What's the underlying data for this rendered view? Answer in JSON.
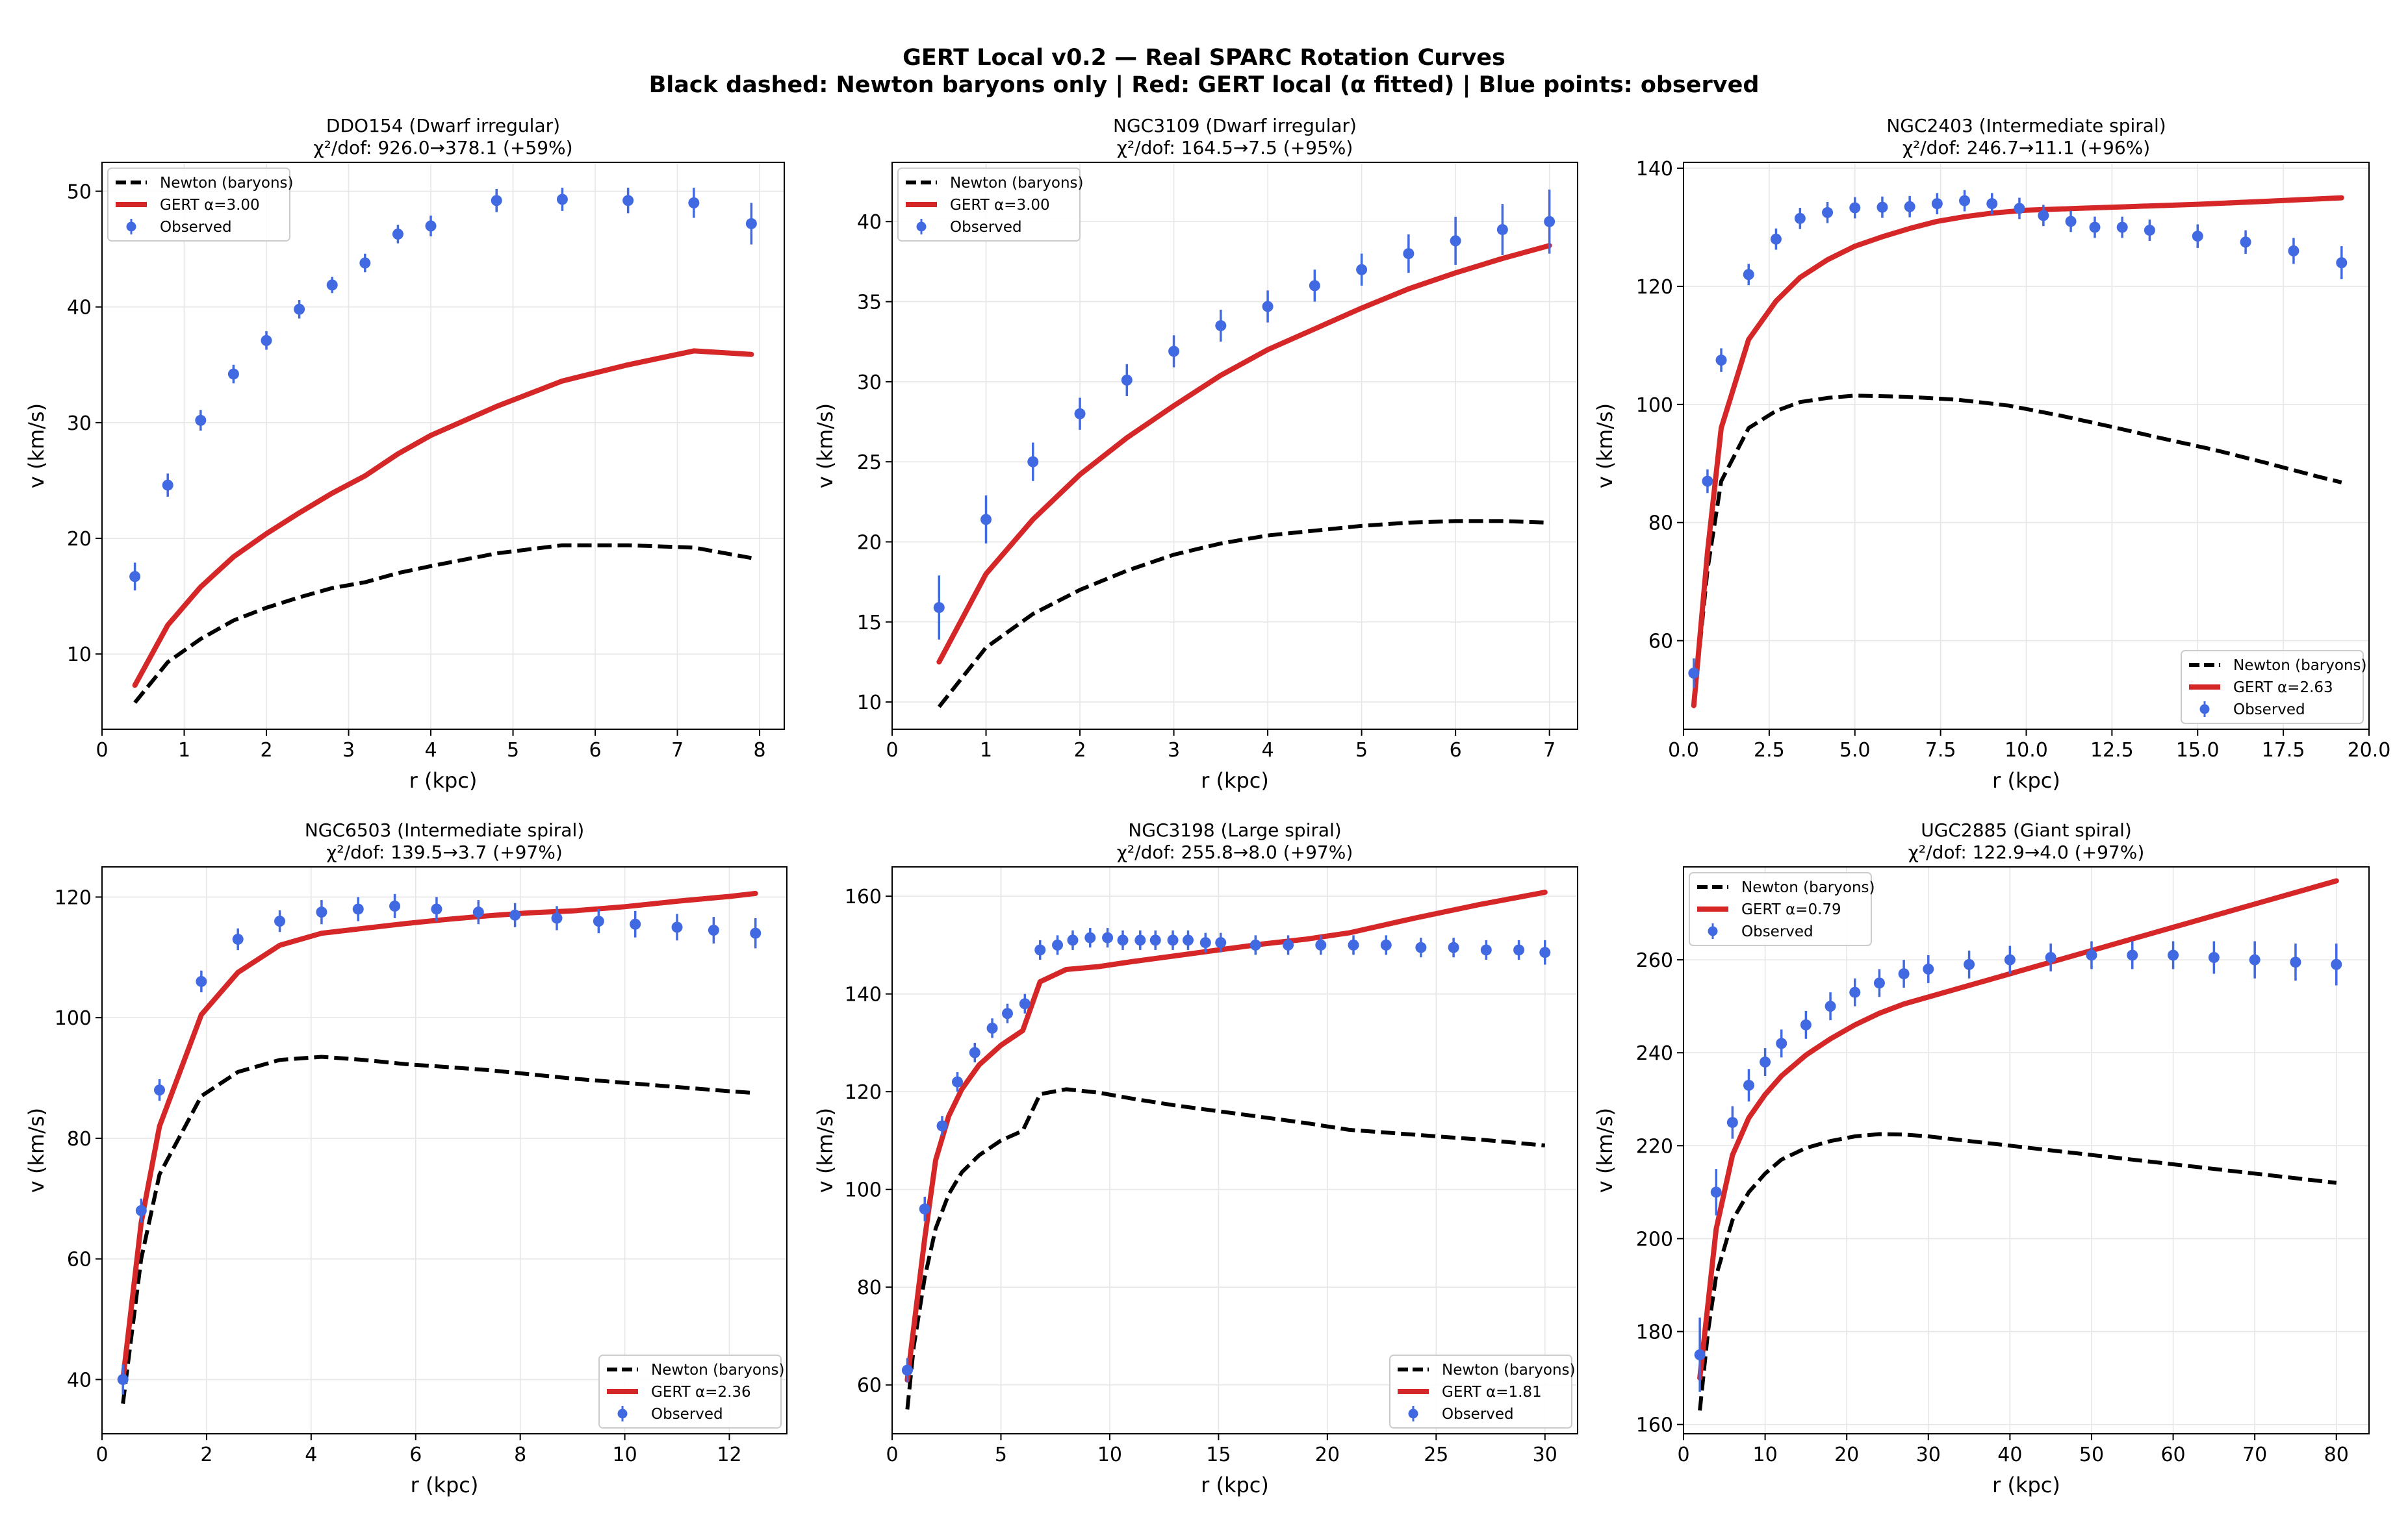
{
  "figure": {
    "title_line1": "GERT Local v0.2 — Real SPARC Rotation Curves",
    "title_line2": "Black dashed: Newton baryons only | Red: GERT local (α fitted) | Blue points: observed"
  },
  "colors": {
    "newton": "#000000",
    "gert": "#d62728",
    "observed": "#4169e1",
    "grid": "#e6e6e6"
  },
  "chart_data": [
    {
      "type": "line",
      "title": "DDO154 (Dwarf irregular)",
      "subtitle": "χ²/dof: 926.0→378.1 (+59%)",
      "xlabel": "r (kpc)",
      "ylabel": "v (km/s)",
      "xlim": [
        0,
        8.3
      ],
      "ylim": [
        3.5,
        52.5
      ],
      "xticks": [
        0,
        1,
        2,
        3,
        4,
        5,
        6,
        7,
        8
      ],
      "xticklabels": [
        "0",
        "1",
        "2",
        "3",
        "4",
        "5",
        "6",
        "7",
        "8"
      ],
      "yticks": [
        10,
        20,
        30,
        40,
        50
      ],
      "yticklabels": [
        "10",
        "20",
        "30",
        "40",
        "50"
      ],
      "legend": {
        "position": "top-left",
        "entries": [
          "Newton (baryons)",
          "GERT α=3.00",
          "Observed"
        ]
      },
      "grid": true,
      "newton": {
        "x": [
          0.4,
          0.8,
          1.2,
          1.6,
          2.0,
          2.4,
          2.8,
          3.2,
          3.6,
          4.0,
          4.8,
          5.6,
          6.4,
          7.2,
          7.9
        ],
        "y": [
          5.8,
          9.3,
          11.3,
          12.9,
          14.0,
          14.9,
          15.7,
          16.2,
          17.0,
          17.6,
          18.7,
          19.4,
          19.4,
          19.2,
          18.3
        ]
      },
      "gert": {
        "x": [
          0.4,
          0.8,
          1.2,
          1.6,
          2.0,
          2.4,
          2.8,
          3.2,
          3.6,
          4.0,
          4.8,
          5.6,
          6.4,
          7.2,
          7.9
        ],
        "y": [
          7.3,
          12.5,
          15.8,
          18.4,
          20.4,
          22.2,
          23.9,
          25.4,
          27.3,
          28.9,
          31.4,
          33.6,
          35.0,
          36.2,
          35.9
        ]
      },
      "observed": {
        "x": [
          0.4,
          0.8,
          1.2,
          1.6,
          2.0,
          2.4,
          2.8,
          3.2,
          3.6,
          4.0,
          4.8,
          5.6,
          6.4,
          7.2,
          7.9
        ],
        "y": [
          16.7,
          24.6,
          30.2,
          34.2,
          37.1,
          39.8,
          41.9,
          43.8,
          46.3,
          47.0,
          49.2,
          49.3,
          49.2,
          49.0,
          47.2
        ],
        "err": [
          1.2,
          1.0,
          0.9,
          0.8,
          0.8,
          0.8,
          0.7,
          0.8,
          0.8,
          0.9,
          1.0,
          1.0,
          1.1,
          1.3,
          1.8
        ]
      }
    },
    {
      "type": "line",
      "title": "NGC3109 (Dwarf irregular)",
      "subtitle": "χ²/dof: 164.5→7.5 (+95%)",
      "xlabel": "r (kpc)",
      "ylabel": "v (km/s)",
      "xlim": [
        0,
        7.3
      ],
      "ylim": [
        8.3,
        43.7
      ],
      "xticks": [
        0,
        1,
        2,
        3,
        4,
        5,
        6,
        7
      ],
      "xticklabels": [
        "0",
        "1",
        "2",
        "3",
        "4",
        "5",
        "6",
        "7"
      ],
      "yticks": [
        10,
        15,
        20,
        25,
        30,
        35,
        40
      ],
      "yticklabels": [
        "10",
        "15",
        "20",
        "25",
        "30",
        "35",
        "40"
      ],
      "legend": {
        "position": "top-left",
        "entries": [
          "Newton (baryons)",
          "GERT α=3.00",
          "Observed"
        ]
      },
      "grid": true,
      "newton": {
        "x": [
          0.5,
          1.0,
          1.5,
          2.0,
          2.5,
          3.0,
          3.5,
          4.0,
          4.5,
          5.0,
          5.5,
          6.0,
          6.5,
          7.0
        ],
        "y": [
          9.7,
          13.4,
          15.5,
          17.0,
          18.2,
          19.2,
          19.9,
          20.4,
          20.7,
          21.0,
          21.2,
          21.3,
          21.3,
          21.2
        ]
      },
      "gert": {
        "x": [
          0.5,
          1.0,
          1.5,
          2.0,
          2.5,
          3.0,
          3.5,
          4.0,
          4.5,
          5.0,
          5.5,
          6.0,
          6.5,
          7.0
        ],
        "y": [
          12.5,
          18.0,
          21.4,
          24.2,
          26.5,
          28.5,
          30.4,
          32.0,
          33.3,
          34.6,
          35.8,
          36.8,
          37.7,
          38.5
        ]
      },
      "observed": {
        "x": [
          0.5,
          1.0,
          1.5,
          2.0,
          2.5,
          3.0,
          3.5,
          4.0,
          4.5,
          5.0,
          5.5,
          6.0,
          6.5,
          7.0
        ],
        "y": [
          15.9,
          21.4,
          25.0,
          28.0,
          30.1,
          31.9,
          33.5,
          34.7,
          36.0,
          37.0,
          38.0,
          38.8,
          39.5,
          40.0
        ],
        "err": [
          2.0,
          1.5,
          1.2,
          1.0,
          1.0,
          1.0,
          1.0,
          1.0,
          1.0,
          1.0,
          1.2,
          1.5,
          1.6,
          2.0
        ]
      }
    },
    {
      "type": "line",
      "title": "NGC2403 (Intermediate spiral)",
      "subtitle": "χ²/dof: 246.7→11.1 (+96%)",
      "xlabel": "r (kpc)",
      "ylabel": "v (km/s)",
      "xlim": [
        0,
        20.0
      ],
      "ylim": [
        45,
        141
      ],
      "xticks": [
        0,
        2.5,
        5,
        7.5,
        10,
        12.5,
        15,
        17.5,
        20
      ],
      "xticklabels": [
        "0.0",
        "2.5",
        "5.0",
        "7.5",
        "10.0",
        "12.5",
        "15.0",
        "17.5",
        "20.0"
      ],
      "yticks": [
        60,
        80,
        100,
        120,
        140
      ],
      "yticklabels": [
        "60",
        "80",
        "100",
        "120",
        "140"
      ],
      "legend": {
        "position": "bottom-right",
        "entries": [
          "Newton (baryons)",
          "GERT α=2.63",
          "Observed"
        ]
      },
      "grid": true,
      "newton": {
        "x": [
          0.3,
          0.7,
          1.1,
          1.9,
          2.7,
          3.4,
          4.2,
          5.0,
          6.5,
          8.0,
          9.5,
          11.0,
          12.5,
          14.0,
          15.5,
          17.0,
          18.5,
          19.2
        ],
        "y": [
          49,
          72,
          87,
          96,
          98.9,
          100.4,
          101.1,
          101.5,
          101.3,
          100.8,
          99.8,
          98.1,
          96.2,
          94.2,
          92.3,
          90.1,
          87.8,
          86.8
        ]
      },
      "gert": {
        "x": [
          0.3,
          0.7,
          1.1,
          1.9,
          2.7,
          3.4,
          4.2,
          5.0,
          5.8,
          6.6,
          7.4,
          8.2,
          9.0,
          10.0,
          11.5,
          13.0,
          15.0,
          17.0,
          19.2
        ],
        "y": [
          49,
          75,
          96,
          111,
          117.5,
          121.5,
          124.5,
          126.8,
          128.4,
          129.8,
          131.0,
          131.8,
          132.4,
          132.9,
          133.2,
          133.5,
          133.9,
          134.4,
          135.0
        ]
      },
      "observed": {
        "x": [
          0.3,
          0.7,
          1.1,
          1.9,
          2.7,
          3.4,
          4.2,
          5.0,
          5.8,
          6.6,
          7.4,
          8.2,
          9.0,
          9.8,
          10.5,
          11.3,
          12.0,
          12.8,
          13.6,
          15.0,
          16.4,
          17.8,
          19.2
        ],
        "y": [
          54.5,
          87,
          107.5,
          122,
          128,
          131.5,
          132.5,
          133.3,
          133.4,
          133.5,
          134,
          134.5,
          134.0,
          133.2,
          132.0,
          131.0,
          130.0,
          130.0,
          129.5,
          128.5,
          127.5,
          126.0,
          124.0
        ],
        "err": [
          2.5,
          2.0,
          2.0,
          1.8,
          1.8,
          1.8,
          1.8,
          1.8,
          1.8,
          1.8,
          1.8,
          1.8,
          1.8,
          1.8,
          1.8,
          1.8,
          1.8,
          1.8,
          1.8,
          2.0,
          2.0,
          2.2,
          2.8
        ]
      }
    },
    {
      "type": "line",
      "title": "NGC6503 (Intermediate spiral)",
      "subtitle": "χ²/dof: 139.5→3.7 (+97%)",
      "xlabel": "r (kpc)",
      "ylabel": "v (km/s)",
      "xlim": [
        0,
        13.1
      ],
      "ylim": [
        31,
        125
      ],
      "xticks": [
        0,
        2,
        4,
        6,
        8,
        10,
        12
      ],
      "xticklabels": [
        "0",
        "2",
        "4",
        "6",
        "8",
        "10",
        "12"
      ],
      "yticks": [
        40,
        60,
        80,
        100,
        120
      ],
      "yticklabels": [
        "40",
        "60",
        "80",
        "100",
        "120"
      ],
      "legend": {
        "position": "bottom-right",
        "entries": [
          "Newton (baryons)",
          "GERT α=2.36",
          "Observed"
        ]
      },
      "grid": true,
      "newton": {
        "x": [
          0.4,
          0.75,
          1.1,
          1.9,
          2.6,
          3.4,
          4.2,
          5.0,
          5.8,
          6.6,
          7.4,
          8.2,
          9.0,
          10.0,
          11.0,
          12.0,
          12.5
        ],
        "y": [
          36,
          60,
          74,
          87,
          91,
          93,
          93.5,
          93.0,
          92.3,
          91.8,
          91.3,
          90.6,
          89.9,
          89.2,
          88.5,
          87.8,
          87.5
        ]
      },
      "gert": {
        "x": [
          0.4,
          0.75,
          1.1,
          1.9,
          2.6,
          3.4,
          4.2,
          5.0,
          5.8,
          6.6,
          7.4,
          8.2,
          9.0,
          10.0,
          11.0,
          12.0,
          12.5
        ],
        "y": [
          40,
          66,
          82,
          100.5,
          107.5,
          112,
          114,
          114.8,
          115.6,
          116.3,
          116.9,
          117.4,
          117.7,
          118.4,
          119.3,
          120.1,
          120.6
        ]
      },
      "observed": {
        "x": [
          0.4,
          0.75,
          1.1,
          1.9,
          2.6,
          3.4,
          4.2,
          4.9,
          5.6,
          6.4,
          7.2,
          7.9,
          8.7,
          9.5,
          10.2,
          11.0,
          11.7,
          12.5
        ],
        "y": [
          40,
          68,
          88,
          106,
          113,
          116,
          117.5,
          118,
          118.5,
          118,
          117.5,
          117,
          116.5,
          116,
          115.5,
          115,
          114.5,
          114
        ],
        "err": [
          2.5,
          2.0,
          1.8,
          1.8,
          1.8,
          1.8,
          2.0,
          2.0,
          2.0,
          2.0,
          2.0,
          2.0,
          2.0,
          2.0,
          2.2,
          2.2,
          2.2,
          2.5
        ]
      }
    },
    {
      "type": "line",
      "title": "NGC3198 (Large spiral)",
      "subtitle": "χ²/dof: 255.8→8.0 (+97%)",
      "xlabel": "r (kpc)",
      "ylabel": "v (km/s)",
      "xlim": [
        0,
        31.5
      ],
      "ylim": [
        50,
        166
      ],
      "xticks": [
        0,
        5,
        10,
        15,
        20,
        25,
        30
      ],
      "xticklabels": [
        "0",
        "5",
        "10",
        "15",
        "20",
        "25",
        "30"
      ],
      "yticks": [
        60,
        80,
        100,
        120,
        140,
        160
      ],
      "yticklabels": [
        "60",
        "80",
        "100",
        "120",
        "140",
        "160"
      ],
      "legend": {
        "position": "bottom-right",
        "entries": [
          "Newton (baryons)",
          "GERT α=1.81",
          "Observed"
        ]
      },
      "grid": true,
      "newton": {
        "x": [
          0.7,
          1.0,
          1.5,
          2.0,
          2.6,
          3.2,
          4.0,
          5.0,
          6.0,
          6.8,
          8.0,
          9.5,
          11.0,
          13.0,
          15.0,
          17.0,
          19.0,
          21.0,
          24.0,
          27.0,
          30.0
        ],
        "y": [
          55,
          68,
          82,
          92,
          99,
          103.5,
          107,
          110,
          112,
          119.5,
          120.5,
          119.8,
          118.6,
          117.2,
          116.0,
          114.8,
          113.6,
          112.2,
          111.2,
          110.2,
          109.0
        ]
      },
      "gert": {
        "x": [
          0.7,
          1.0,
          1.5,
          2.0,
          2.6,
          3.2,
          4.0,
          5.0,
          6.0,
          6.8,
          8.0,
          9.5,
          11.0,
          13.0,
          15.0,
          17.0,
          19.0,
          21.0,
          24.0,
          27.0,
          30.0
        ],
        "y": [
          61,
          72,
          90,
          106,
          115,
          120.5,
          125.5,
          129.5,
          132.5,
          142.5,
          145,
          145.6,
          146.6,
          147.8,
          149.0,
          150.2,
          151.2,
          152.5,
          155.5,
          158.3,
          160.8
        ]
      },
      "observed": {
        "x": [
          0.7,
          1.5,
          2.3,
          3.0,
          3.8,
          4.6,
          5.3,
          6.1,
          6.8,
          7.6,
          8.3,
          9.1,
          9.9,
          10.6,
          11.4,
          12.1,
          12.9,
          13.6,
          14.4,
          15.1,
          16.7,
          18.2,
          19.7,
          21.2,
          22.7,
          24.3,
          25.8,
          27.3,
          28.8,
          30.0
        ],
        "y": [
          63,
          96,
          113,
          122,
          128,
          133,
          136,
          138,
          149,
          150,
          151,
          151.5,
          151.5,
          151,
          151,
          151,
          151,
          151,
          150.5,
          150.5,
          150,
          150,
          150,
          150,
          150,
          149.5,
          149.5,
          149,
          149,
          148.5
        ],
        "err": [
          2.5,
          2.5,
          2.0,
          2.0,
          2.0,
          2.0,
          2.0,
          2.0,
          2.0,
          2.0,
          2.0,
          2.0,
          2.0,
          2.0,
          2.0,
          2.0,
          2.0,
          2.0,
          2.0,
          2.0,
          2.0,
          2.0,
          2.0,
          2.0,
          2.0,
          2.0,
          2.0,
          2.0,
          2.0,
          2.5
        ]
      }
    },
    {
      "type": "line",
      "title": "UGC2885 (Giant spiral)",
      "subtitle": "χ²/dof: 122.9→4.0 (+97%)",
      "xlabel": "r (kpc)",
      "ylabel": "v (km/s)",
      "xlim": [
        0,
        84
      ],
      "ylim": [
        158,
        280
      ],
      "xticks": [
        0,
        10,
        20,
        30,
        40,
        50,
        60,
        70,
        80
      ],
      "xticklabels": [
        "0",
        "10",
        "20",
        "30",
        "40",
        "50",
        "60",
        "70",
        "80"
      ],
      "yticks": [
        160,
        180,
        200,
        220,
        240,
        260
      ],
      "yticklabels": [
        "160",
        "180",
        "200",
        "220",
        "240",
        "260"
      ],
      "legend": {
        "position": "top-left",
        "entries": [
          "Newton (baryons)",
          "GERT α=0.79",
          "Observed"
        ]
      },
      "grid": true,
      "newton": {
        "x": [
          2,
          3,
          4,
          6,
          8,
          10,
          12,
          15,
          18,
          21,
          24,
          27,
          30,
          35,
          40,
          45,
          50,
          55,
          60,
          65,
          70,
          75,
          80
        ],
        "y": [
          163,
          180,
          192,
          204,
          210,
          214,
          217,
          219.5,
          221,
          222,
          222.5,
          222.4,
          222,
          221,
          220,
          219,
          218,
          217,
          216,
          215,
          214,
          213,
          212
        ]
      },
      "gert": {
        "x": [
          2,
          3,
          4,
          6,
          8,
          10,
          12,
          15,
          18,
          21,
          24,
          27,
          30,
          35,
          40,
          45,
          50,
          55,
          60,
          65,
          70,
          75,
          80
        ],
        "y": [
          170,
          186,
          202,
          218,
          226,
          231,
          235,
          239.5,
          243,
          246,
          248.5,
          250.5,
          252,
          254.5,
          257,
          259.5,
          262,
          264.5,
          267,
          269.5,
          272,
          274.5,
          277
        ]
      },
      "observed": {
        "x": [
          2,
          4,
          6,
          8,
          10,
          12,
          15,
          18,
          21,
          24,
          27,
          30,
          35,
          40,
          45,
          50,
          55,
          60,
          65,
          70,
          75,
          80
        ],
        "y": [
          175,
          210,
          225,
          233,
          238,
          242,
          246,
          250,
          253,
          255,
          257,
          258,
          259,
          260,
          260.5,
          261,
          261,
          261,
          260.5,
          260,
          259.5,
          259
        ],
        "err": [
          8,
          5,
          3.5,
          3.5,
          3,
          3,
          3,
          3,
          3,
          3,
          3,
          3,
          3,
          3,
          3,
          3,
          3,
          3,
          3.5,
          4,
          4,
          4.5
        ]
      }
    }
  ]
}
